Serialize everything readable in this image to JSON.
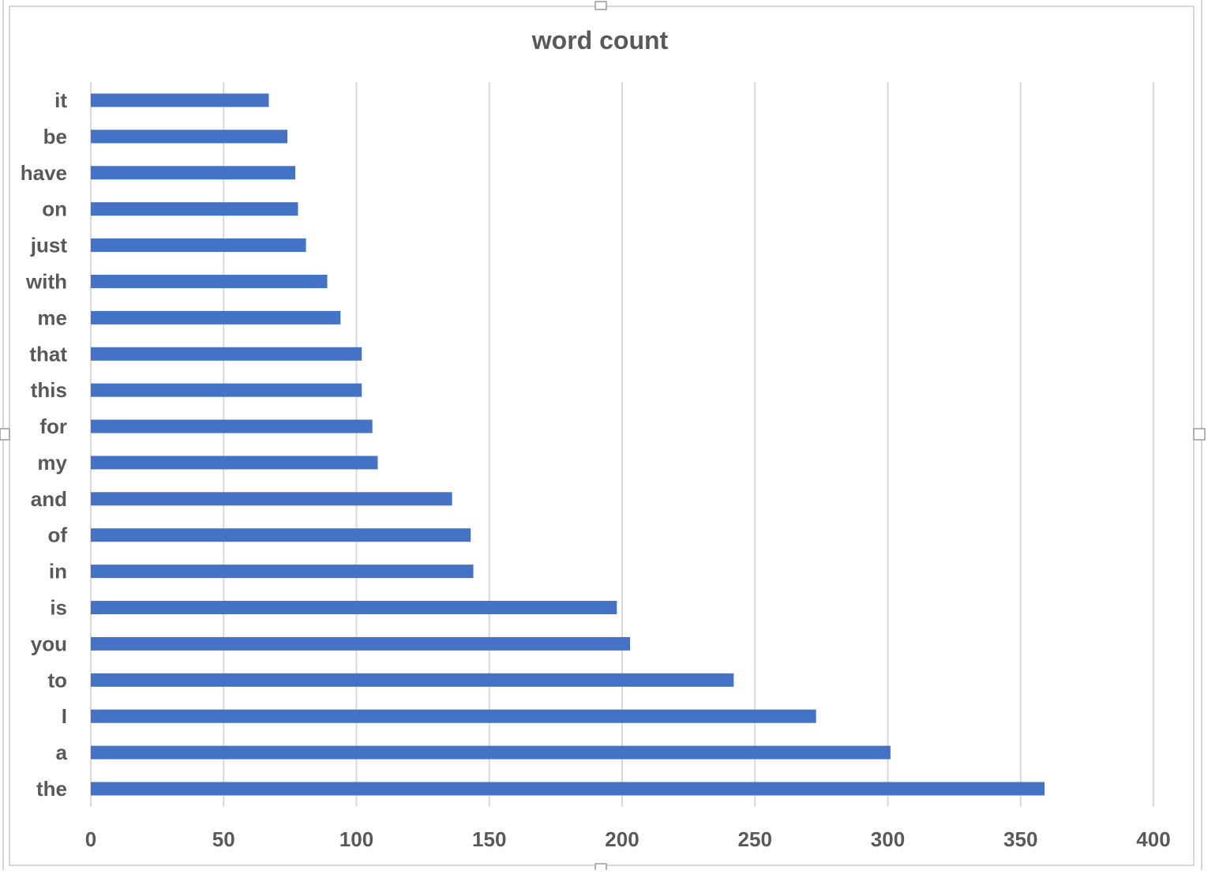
{
  "chart_data": {
    "type": "bar",
    "orientation": "horizontal",
    "title": "word count",
    "categories": [
      "it",
      "be",
      "have",
      "on",
      "just",
      "with",
      "me",
      "that",
      "this",
      "for",
      "my",
      "and",
      "of",
      "in",
      "is",
      "you",
      "to",
      "I",
      "a",
      "the"
    ],
    "values": [
      67,
      74,
      77,
      78,
      81,
      89,
      94,
      102,
      102,
      106,
      108,
      136,
      143,
      144,
      198,
      203,
      242,
      273,
      301,
      359
    ],
    "xlim": [
      0,
      400
    ],
    "xticks": [
      "0",
      "50",
      "100",
      "150",
      "200",
      "250",
      "300",
      "350",
      "400"
    ],
    "xtick_values": [
      0,
      50,
      100,
      150,
      200,
      250,
      300,
      350,
      400
    ],
    "grid": true,
    "bar_color": "#4472c4",
    "grid_color": "#d9d9d9",
    "text_color": "#595959"
  }
}
